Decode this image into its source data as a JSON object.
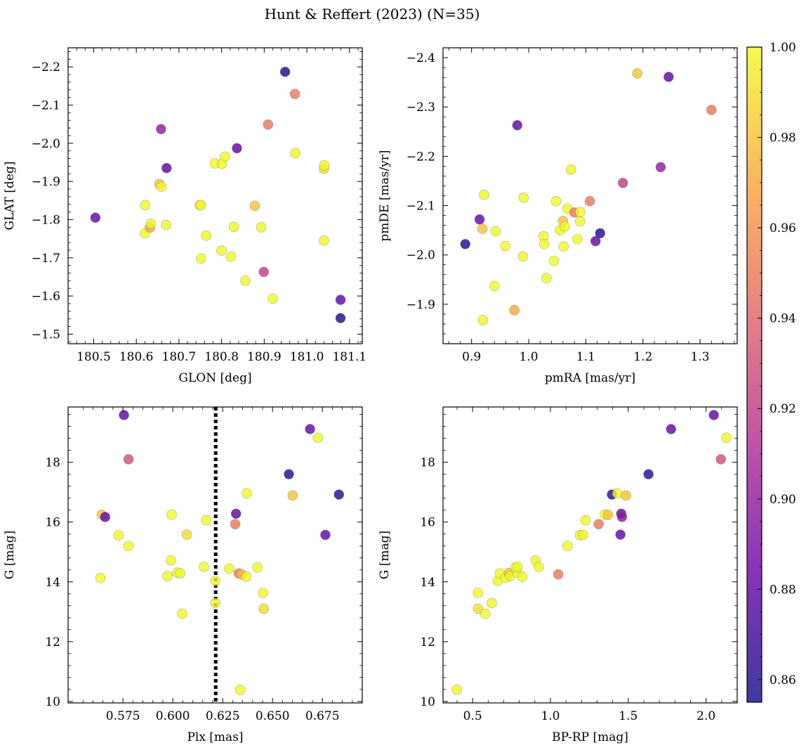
{
  "title": "Hunt & Reffert (2023) (N=35)",
  "colormap": {
    "name": "plasma",
    "stops": [
      "#0d0887",
      "#6a00a8",
      "#b12a90",
      "#e16462",
      "#fca636",
      "#f0f921"
    ],
    "alpha": 0.8,
    "range": [
      0.855,
      1.0
    ],
    "ticks": [
      0.86,
      0.88,
      0.9,
      0.92,
      0.94,
      0.96,
      0.98,
      1.0
    ],
    "tick_labels": [
      "0.86",
      "0.88",
      "0.90",
      "0.92",
      "0.94",
      "0.96",
      "0.98",
      "1.00"
    ]
  },
  "chart_data": [
    {
      "id": "ax1",
      "type": "scatter",
      "xlabel": "GLON [deg]",
      "ylabel": "GLAT [deg]",
      "xlim": [
        180.44,
        181.13
      ],
      "ylim": [
        -2.25,
        -1.475
      ],
      "xticks": [
        180.5,
        180.6,
        180.7,
        180.8,
        180.9,
        181.0,
        181.1
      ],
      "xtick_labels": [
        "180.5",
        "180.6",
        "180.7",
        "180.8",
        "180.9",
        "181.0",
        "181.1"
      ],
      "yticks": [
        -2.2,
        -2.1,
        -2.0,
        -1.9,
        -1.8,
        -1.7,
        -1.6,
        -1.5
      ],
      "ytick_labels": [
        "−2.2",
        "−2.1",
        "−2.0",
        "−1.9",
        "−1.8",
        "−1.7",
        "−1.6",
        "−1.5"
      ],
      "points": [
        {
          "x": 180.504,
          "y": -1.805,
          "c": 0.88
        },
        {
          "x": 180.62,
          "y": -1.764,
          "c": 1.0
        },
        {
          "x": 180.632,
          "y": -1.779,
          "c": 0.97
        },
        {
          "x": 180.634,
          "y": -1.789,
          "c": 1.0
        },
        {
          "x": 180.621,
          "y": -1.838,
          "c": 1.0
        },
        {
          "x": 180.67,
          "y": -1.786,
          "c": 1.0
        },
        {
          "x": 180.654,
          "y": -1.893,
          "c": 0.98
        },
        {
          "x": 180.659,
          "y": -1.886,
          "c": 1.0
        },
        {
          "x": 180.671,
          "y": -1.935,
          "c": 0.88
        },
        {
          "x": 180.658,
          "y": -2.037,
          "c": 0.9
        },
        {
          "x": 180.752,
          "y": -1.698,
          "c": 1.0
        },
        {
          "x": 180.764,
          "y": -1.758,
          "c": 1.0
        },
        {
          "x": 180.749,
          "y": -1.838,
          "c": 1.0
        },
        {
          "x": 180.751,
          "y": -1.838,
          "c": 1.0
        },
        {
          "x": 180.784,
          "y": -1.947,
          "c": 1.0
        },
        {
          "x": 180.801,
          "y": -1.946,
          "c": 1.0
        },
        {
          "x": 180.808,
          "y": -1.965,
          "c": 1.0
        },
        {
          "x": 180.8,
          "y": -1.719,
          "c": 1.0
        },
        {
          "x": 180.822,
          "y": -1.703,
          "c": 1.0
        },
        {
          "x": 180.829,
          "y": -1.781,
          "c": 1.0
        },
        {
          "x": 180.836,
          "y": -1.987,
          "c": 0.88
        },
        {
          "x": 180.856,
          "y": -1.64,
          "c": 1.0
        },
        {
          "x": 180.878,
          "y": -1.836,
          "c": 0.98
        },
        {
          "x": 180.893,
          "y": -1.78,
          "c": 1.0
        },
        {
          "x": 180.899,
          "y": -1.663,
          "c": 0.92
        },
        {
          "x": 180.92,
          "y": -1.593,
          "c": 1.0
        },
        {
          "x": 180.909,
          "y": -2.049,
          "c": 0.95
        },
        {
          "x": 180.949,
          "y": -2.187,
          "c": 0.86
        },
        {
          "x": 180.972,
          "y": -2.129,
          "c": 0.95
        },
        {
          "x": 180.973,
          "y": -1.974,
          "c": 1.0
        },
        {
          "x": 181.04,
          "y": -1.745,
          "c": 1.0
        },
        {
          "x": 181.04,
          "y": -1.933,
          "c": 0.99
        },
        {
          "x": 181.041,
          "y": -1.942,
          "c": 1.0
        },
        {
          "x": 181.079,
          "y": -1.542,
          "c": 0.86
        },
        {
          "x": 181.079,
          "y": -1.59,
          "c": 0.88
        }
      ]
    },
    {
      "id": "ax2",
      "type": "scatter",
      "xlabel": "pmRA [mas/yr]",
      "ylabel": "pmDE [mas/yr]",
      "xlim": [
        0.85,
        1.365
      ],
      "ylim": [
        -2.42,
        -1.82
      ],
      "xticks": [
        0.9,
        1.0,
        1.1,
        1.2,
        1.3
      ],
      "xtick_labels": [
        "0.9",
        "1.0",
        "1.1",
        "1.2",
        "1.3"
      ],
      "yticks": [
        -2.4,
        -2.3,
        -2.2,
        -2.1,
        -2.0,
        -1.9
      ],
      "ytick_labels": [
        "−2.4",
        "−2.3",
        "−2.2",
        "−2.1",
        "−2.0",
        "−1.9"
      ],
      "points": [
        {
          "x": 0.889,
          "y": -2.022,
          "c": 0.86
        },
        {
          "x": 0.914,
          "y": -2.072,
          "c": 0.88
        },
        {
          "x": 0.919,
          "y": -2.053,
          "c": 0.98
        },
        {
          "x": 0.92,
          "y": -1.868,
          "c": 1.0
        },
        {
          "x": 0.922,
          "y": -2.122,
          "c": 1.0
        },
        {
          "x": 0.94,
          "y": -1.937,
          "c": 1.0
        },
        {
          "x": 0.942,
          "y": -2.048,
          "c": 1.0
        },
        {
          "x": 0.959,
          "y": -2.018,
          "c": 1.0
        },
        {
          "x": 0.975,
          "y": -1.888,
          "c": 0.97
        },
        {
          "x": 0.98,
          "y": -2.263,
          "c": 0.88
        },
        {
          "x": 0.99,
          "y": -1.997,
          "c": 1.0
        },
        {
          "x": 0.991,
          "y": -2.116,
          "c": 1.0
        },
        {
          "x": 1.026,
          "y": -2.038,
          "c": 1.0
        },
        {
          "x": 1.027,
          "y": -2.022,
          "c": 1.0
        },
        {
          "x": 1.031,
          "y": -1.953,
          "c": 1.0
        },
        {
          "x": 1.044,
          "y": -1.988,
          "c": 1.0
        },
        {
          "x": 1.048,
          "y": -2.109,
          "c": 1.0
        },
        {
          "x": 1.055,
          "y": -2.05,
          "c": 1.0
        },
        {
          "x": 1.06,
          "y": -2.069,
          "c": 0.98
        },
        {
          "x": 1.061,
          "y": -2.017,
          "c": 1.0
        },
        {
          "x": 1.063,
          "y": -2.058,
          "c": 1.0
        },
        {
          "x": 1.068,
          "y": -2.094,
          "c": 1.0
        },
        {
          "x": 1.074,
          "y": -2.173,
          "c": 1.0
        },
        {
          "x": 1.08,
          "y": -2.086,
          "c": 0.95
        },
        {
          "x": 1.085,
          "y": -2.032,
          "c": 1.0
        },
        {
          "x": 1.09,
          "y": -2.068,
          "c": 1.0
        },
        {
          "x": 1.09,
          "y": -2.087,
          "c": 1.0
        },
        {
          "x": 1.107,
          "y": -2.109,
          "c": 0.95
        },
        {
          "x": 1.117,
          "y": -2.028,
          "c": 0.88
        },
        {
          "x": 1.125,
          "y": -2.044,
          "c": 0.86
        },
        {
          "x": 1.165,
          "y": -2.146,
          "c": 0.92
        },
        {
          "x": 1.19,
          "y": -2.368,
          "c": 0.98
        },
        {
          "x": 1.231,
          "y": -2.178,
          "c": 0.9
        },
        {
          "x": 1.245,
          "y": -2.361,
          "c": 0.88
        },
        {
          "x": 1.32,
          "y": -2.294,
          "c": 0.95
        }
      ]
    },
    {
      "id": "ax3",
      "type": "scatter",
      "xlabel": "Plx [mas]",
      "ylabel": "G [mag]",
      "xlim": [
        0.5475,
        0.695
      ],
      "ylim": [
        19.85,
        9.95
      ],
      "xticks": [
        0.575,
        0.6,
        0.625,
        0.65,
        0.675
      ],
      "xtick_labels": [
        "0.575",
        "0.600",
        "0.625",
        "0.650",
        "0.675"
      ],
      "yticks": [
        10,
        12,
        14,
        16,
        18
      ],
      "ytick_labels": [
        "10",
        "12",
        "14",
        "16",
        "18"
      ],
      "vline": 0.6215,
      "points": [
        {
          "x": 0.5637,
          "y": 14.13,
          "c": 1.0
        },
        {
          "x": 0.5644,
          "y": 16.24,
          "c": 0.98
        },
        {
          "x": 0.5661,
          "y": 16.17,
          "c": 0.88
        },
        {
          "x": 0.5728,
          "y": 15.56,
          "c": 1.0
        },
        {
          "x": 0.5755,
          "y": 19.58,
          "c": 0.88
        },
        {
          "x": 0.5778,
          "y": 15.2,
          "c": 1.0
        },
        {
          "x": 0.5778,
          "y": 18.1,
          "c": 0.93
        },
        {
          "x": 0.5973,
          "y": 14.19,
          "c": 1.0
        },
        {
          "x": 0.5991,
          "y": 14.72,
          "c": 1.0
        },
        {
          "x": 0.5994,
          "y": 16.25,
          "c": 1.0
        },
        {
          "x": 0.6022,
          "y": 14.31,
          "c": 1.0
        },
        {
          "x": 0.6037,
          "y": 14.29,
          "c": 1.0
        },
        {
          "x": 0.6047,
          "y": 12.93,
          "c": 1.0
        },
        {
          "x": 0.607,
          "y": 15.58,
          "c": 0.99
        },
        {
          "x": 0.6156,
          "y": 14.5,
          "c": 1.0
        },
        {
          "x": 0.6168,
          "y": 16.06,
          "c": 1.0
        },
        {
          "x": 0.6213,
          "y": 13.29,
          "c": 1.0
        },
        {
          "x": 0.6213,
          "y": 14.03,
          "c": 1.0
        },
        {
          "x": 0.6283,
          "y": 14.44,
          "c": 1.0
        },
        {
          "x": 0.6313,
          "y": 15.93,
          "c": 0.95
        },
        {
          "x": 0.6317,
          "y": 16.28,
          "c": 0.88
        },
        {
          "x": 0.6331,
          "y": 14.28,
          "c": 0.95
        },
        {
          "x": 0.6338,
          "y": 10.39,
          "c": 1.0
        },
        {
          "x": 0.6346,
          "y": 14.25,
          "c": 0.98
        },
        {
          "x": 0.6369,
          "y": 14.17,
          "c": 1.0
        },
        {
          "x": 0.6371,
          "y": 16.96,
          "c": 1.0
        },
        {
          "x": 0.6424,
          "y": 14.48,
          "c": 1.0
        },
        {
          "x": 0.6452,
          "y": 13.63,
          "c": 1.0
        },
        {
          "x": 0.6456,
          "y": 13.1,
          "c": 0.99
        },
        {
          "x": 0.6582,
          "y": 17.6,
          "c": 0.86
        },
        {
          "x": 0.6601,
          "y": 16.89,
          "c": 0.98
        },
        {
          "x": 0.6688,
          "y": 19.11,
          "c": 0.88
        },
        {
          "x": 0.6727,
          "y": 18.82,
          "c": 1.0
        },
        {
          "x": 0.6765,
          "y": 15.57,
          "c": 0.88
        },
        {
          "x": 0.6833,
          "y": 16.92,
          "c": 0.86
        }
      ]
    },
    {
      "id": "ax4",
      "type": "scatter",
      "xlabel": "BP-RP [mag]",
      "ylabel": "G [mag]",
      "xlim": [
        0.31,
        2.2
      ],
      "ylim": [
        19.85,
        9.95
      ],
      "xticks": [
        0.5,
        1.0,
        1.5,
        2.0
      ],
      "xtick_labels": [
        "0.5",
        "1.0",
        "1.5",
        "2.0"
      ],
      "yticks": [
        10,
        12,
        14,
        16,
        18
      ],
      "ytick_labels": [
        "10",
        "12",
        "14",
        "16",
        "18"
      ],
      "points": [
        {
          "x": 0.4,
          "y": 10.39,
          "c": 1.0
        },
        {
          "x": 0.535,
          "y": 13.1,
          "c": 0.99
        },
        {
          "x": 0.535,
          "y": 13.63,
          "c": 1.0
        },
        {
          "x": 0.582,
          "y": 12.93,
          "c": 1.0
        },
        {
          "x": 0.623,
          "y": 13.29,
          "c": 1.0
        },
        {
          "x": 0.661,
          "y": 14.03,
          "c": 1.0
        },
        {
          "x": 0.675,
          "y": 14.28,
          "c": 1.0
        },
        {
          "x": 0.71,
          "y": 14.13,
          "c": 1.0
        },
        {
          "x": 0.733,
          "y": 14.3,
          "c": 0.98
        },
        {
          "x": 0.74,
          "y": 14.19,
          "c": 1.0
        },
        {
          "x": 0.785,
          "y": 14.31,
          "c": 1.0
        },
        {
          "x": 0.775,
          "y": 14.48,
          "c": 1.0
        },
        {
          "x": 0.79,
          "y": 14.5,
          "c": 1.0
        },
        {
          "x": 0.82,
          "y": 14.17,
          "c": 1.0
        },
        {
          "x": 0.905,
          "y": 14.72,
          "c": 1.0
        },
        {
          "x": 0.925,
          "y": 14.5,
          "c": 1.0
        },
        {
          "x": 1.05,
          "y": 14.25,
          "c": 0.95
        },
        {
          "x": 1.11,
          "y": 15.2,
          "c": 1.0
        },
        {
          "x": 1.19,
          "y": 15.56,
          "c": 1.0
        },
        {
          "x": 1.21,
          "y": 15.57,
          "c": 1.0
        },
        {
          "x": 1.225,
          "y": 16.06,
          "c": 1.0
        },
        {
          "x": 1.31,
          "y": 15.93,
          "c": 0.95
        },
        {
          "x": 1.35,
          "y": 16.25,
          "c": 1.0
        },
        {
          "x": 1.37,
          "y": 16.24,
          "c": 0.98
        },
        {
          "x": 1.395,
          "y": 16.92,
          "c": 0.86
        },
        {
          "x": 1.43,
          "y": 16.96,
          "c": 1.0
        },
        {
          "x": 1.45,
          "y": 15.58,
          "c": 0.88
        },
        {
          "x": 1.455,
          "y": 16.28,
          "c": 0.88
        },
        {
          "x": 1.46,
          "y": 16.17,
          "c": 0.9
        },
        {
          "x": 1.485,
          "y": 16.89,
          "c": 0.98
        },
        {
          "x": 1.63,
          "y": 17.6,
          "c": 0.86
        },
        {
          "x": 1.775,
          "y": 19.11,
          "c": 0.88
        },
        {
          "x": 2.05,
          "y": 19.58,
          "c": 0.88
        },
        {
          "x": 2.095,
          "y": 18.1,
          "c": 0.93
        },
        {
          "x": 2.13,
          "y": 18.82,
          "c": 1.0
        }
      ]
    }
  ]
}
